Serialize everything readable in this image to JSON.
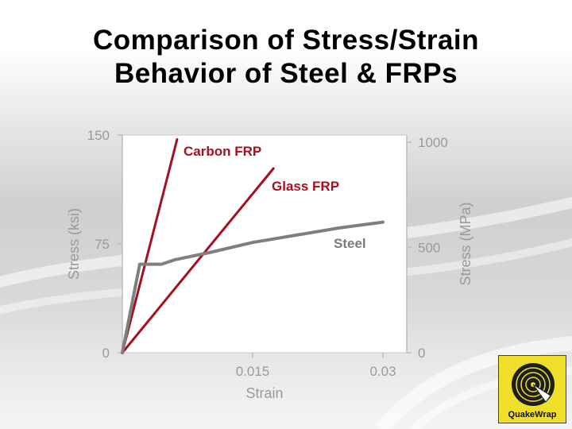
{
  "slide": {
    "title_line1": "Comparison of Stress/Strain",
    "title_line2": "Behavior of Steel & FRPs"
  },
  "logo": {
    "text": "QuakeWrap",
    "icon": "quakewrap-logo-icon",
    "background": "#f0df2a"
  },
  "chart_data": {
    "type": "line",
    "title": "Comparison of Stress/Strain Behavior of Steel & FRPs",
    "xlabel": "Strain",
    "ylabel": "Stress (ksi)",
    "ylabel_right": "Stress (MPa)",
    "xlim": [
      0,
      0.03
    ],
    "ylim": [
      0,
      150
    ],
    "ylim_right": [
      0,
      1034
    ],
    "x_ticks": [
      {
        "value": 0.015,
        "label": "0.015"
      },
      {
        "value": 0.03,
        "label": "0.03"
      }
    ],
    "y_ticks": [
      {
        "value": 0,
        "label": "0"
      },
      {
        "value": 75,
        "label": "75"
      },
      {
        "value": 150,
        "label": "150"
      }
    ],
    "y_ticks_right": [
      {
        "value": 0,
        "label": "0"
      },
      {
        "value": 500,
        "label": "500"
      },
      {
        "value": 1000,
        "label": "1000"
      }
    ],
    "grid": false,
    "series": [
      {
        "name": "Carbon FRP",
        "color": "#a50f1e",
        "points": [
          [
            0,
            0
          ],
          [
            0.0063,
            147
          ]
        ]
      },
      {
        "name": "Glass FRP",
        "color": "#a50f1e",
        "points": [
          [
            0,
            0
          ],
          [
            0.0174,
            127
          ]
        ]
      },
      {
        "name": "Steel",
        "color": "#7f7f7f",
        "points": [
          [
            0,
            0
          ],
          [
            0.002,
            61
          ],
          [
            0.0045,
            61
          ],
          [
            0.006,
            64
          ],
          [
            0.01,
            69
          ],
          [
            0.015,
            76
          ],
          [
            0.02,
            81
          ],
          [
            0.025,
            86
          ],
          [
            0.03,
            90
          ]
        ]
      }
    ]
  }
}
